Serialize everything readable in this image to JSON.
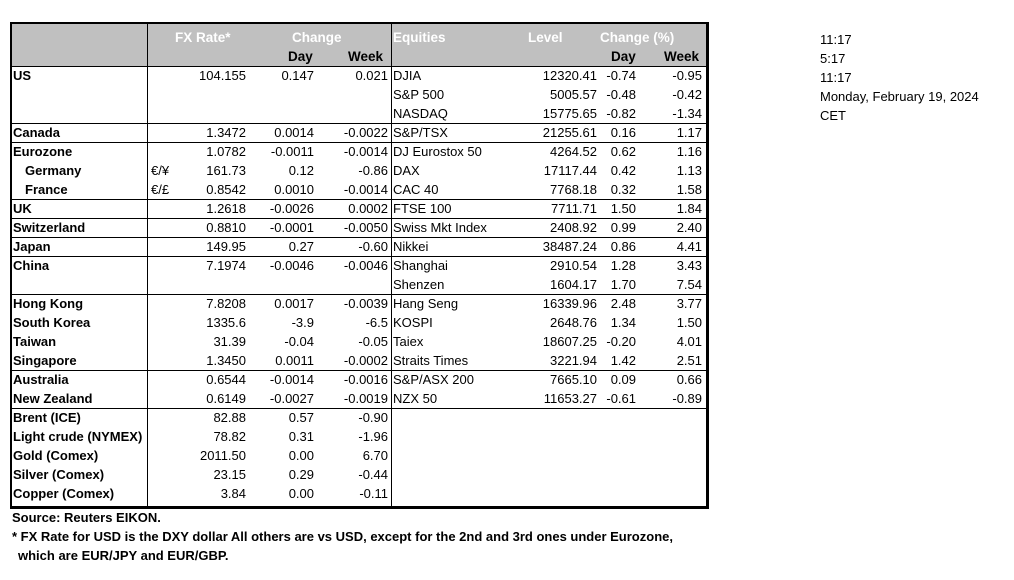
{
  "header": {
    "fx_rate": "FX Rate*",
    "change": "Change",
    "day": "Day",
    "week": "Week",
    "equities": "Equities",
    "level": "Level",
    "change_pct": "Change (%)",
    "day2": "Day",
    "week2": "Week"
  },
  "rows": [
    {
      "name": "US",
      "sub": "",
      "fx": "104.155",
      "d": "0.147",
      "w": "0.021",
      "eq": "DJIA",
      "lvl": "12320.41",
      "ed": "-0.74",
      "ew": "-0.95"
    },
    {
      "name": "",
      "sub": "",
      "fx": "",
      "d": "",
      "w": "",
      "eq": "S&P 500",
      "lvl": "5005.57",
      "ed": "-0.48",
      "ew": "-0.42"
    },
    {
      "name": "",
      "sub": "",
      "fx": "",
      "d": "",
      "w": "",
      "eq": "NASDAQ",
      "lvl": "15775.65",
      "ed": "-0.82",
      "ew": "-1.34"
    },
    {
      "name": "Canada",
      "sub": "",
      "fx": "1.3472",
      "d": "0.0014",
      "w": "-0.0022",
      "eq": "S&P/TSX",
      "lvl": "21255.61",
      "ed": "0.16",
      "ew": "1.17"
    },
    {
      "name": "Eurozone",
      "sub": "",
      "fx": "1.0782",
      "d": "-0.0011",
      "w": "-0.0014",
      "eq": "DJ Eurostox 50",
      "lvl": "4264.52",
      "ed": "0.62",
      "ew": "1.16"
    },
    {
      "name": "  Germany",
      "sub": "€/¥",
      "fx": "161.73",
      "d": "0.12",
      "w": "-0.86",
      "eq": "DAX",
      "lvl": "17117.44",
      "ed": "0.42",
      "ew": "1.13"
    },
    {
      "name": "  France",
      "sub": "€/£",
      "fx": "0.8542",
      "d": "0.0010",
      "w": "-0.0014",
      "eq": "CAC 40",
      "lvl": "7768.18",
      "ed": "0.32",
      "ew": "1.58"
    },
    {
      "name": "UK",
      "sub": "",
      "fx": "1.2618",
      "d": "-0.0026",
      "w": "0.0002",
      "eq": "FTSE 100",
      "lvl": "7711.71",
      "ed": "1.50",
      "ew": "1.84"
    },
    {
      "name": "Switzerland",
      "sub": "",
      "fx": "0.8810",
      "d": "-0.0001",
      "w": "-0.0050",
      "eq": "Swiss Mkt Index",
      "lvl": "2408.92",
      "ed": "0.99",
      "ew": "2.40"
    },
    {
      "name": "Japan",
      "sub": "",
      "fx": "149.95",
      "d": "0.27",
      "w": "-0.60",
      "eq": "Nikkei",
      "lvl": "38487.24",
      "ed": "0.86",
      "ew": "4.41"
    },
    {
      "name": "China",
      "sub": "",
      "fx": "7.1974",
      "d": "-0.0046",
      "w": "-0.0046",
      "eq": "Shanghai",
      "lvl": "2910.54",
      "ed": "1.28",
      "ew": "3.43"
    },
    {
      "name": "",
      "sub": "",
      "fx": "",
      "d": "",
      "w": "",
      "eq": "Shenzen",
      "lvl": "1604.17",
      "ed": "1.70",
      "ew": "7.54"
    },
    {
      "name": "Hong Kong",
      "sub": "",
      "fx": "7.8208",
      "d": "0.0017",
      "w": "-0.0039",
      "eq": "Hang Seng",
      "lvl": "16339.96",
      "ed": "2.48",
      "ew": "3.77"
    },
    {
      "name": "South Korea",
      "sub": "",
      "fx": "1335.6",
      "d": "-3.9",
      "w": "-6.5",
      "eq": "KOSPI",
      "lvl": "2648.76",
      "ed": "1.34",
      "ew": "1.50"
    },
    {
      "name": "Taiwan",
      "sub": "",
      "fx": "31.39",
      "d": "-0.04",
      "w": "-0.05",
      "eq": "Taiex",
      "lvl": "18607.25",
      "ed": "-0.20",
      "ew": "4.01"
    },
    {
      "name": "Singapore",
      "sub": "",
      "fx": "1.3450",
      "d": "0.0011",
      "w": "-0.0002",
      "eq": "Straits Times",
      "lvl": "3221.94",
      "ed": "1.42",
      "ew": "2.51"
    },
    {
      "name": "Australia",
      "sub": "",
      "fx": "0.6544",
      "d": "-0.0014",
      "w": "-0.0016",
      "eq": "S&P/ASX  200",
      "lvl": "7665.10",
      "ed": "0.09",
      "ew": "0.66"
    },
    {
      "name": "New Zealand",
      "sub": "",
      "fx": "0.6149",
      "d": "-0.0027",
      "w": "-0.0019",
      "eq": "NZX 50",
      "lvl": "11653.27",
      "ed": "-0.61",
      "ew": "-0.89"
    },
    {
      "name": "Brent (ICE)",
      "sub": "",
      "fx": "82.88",
      "d": "0.57",
      "w": "-0.90",
      "eq": "",
      "lvl": "",
      "ed": "",
      "ew": ""
    },
    {
      "name": "Light crude (NYMEX)",
      "sub": "",
      "fx": "78.82",
      "d": "0.31",
      "w": "-1.96",
      "eq": "",
      "lvl": "",
      "ed": "",
      "ew": ""
    },
    {
      "name": "Gold (Comex)",
      "sub": "",
      "fx": "2011.50",
      "d": "0.00",
      "w": "6.70",
      "eq": "",
      "lvl": "",
      "ed": "",
      "ew": ""
    },
    {
      "name": "Silver (Comex)",
      "sub": "",
      "fx": "23.15",
      "d": "0.29",
      "w": "-0.44",
      "eq": "",
      "lvl": "",
      "ed": "",
      "ew": ""
    },
    {
      "name": "Copper (Comex)",
      "sub": "",
      "fx": "3.84",
      "d": "0.00",
      "w": "-0.11",
      "eq": "",
      "lvl": "",
      "ed": "",
      "ew": ""
    }
  ],
  "side": {
    "t1": "11:17",
    "t2": "5:17",
    "t3": "11:17",
    "date": "Monday, February 19, 2024",
    "tz": "CET"
  },
  "footer": {
    "source": "Source:  Reuters EIKON.",
    "note1": "* FX Rate for USD is the DXY dollar  All others are vs USD, except for the 2nd and 3rd ones under Eurozone,",
    "note2": "which are EUR/JPY and EUR/GBP."
  }
}
